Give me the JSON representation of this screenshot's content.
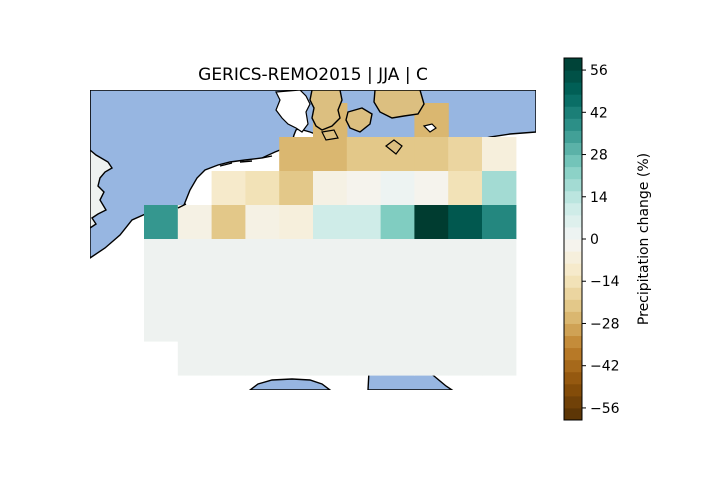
{
  "title": "GERICS-REMO2015 | JJA | C",
  "colors": {
    "ocean": "#97b6e1",
    "coastline": "#000000",
    "no_change_fill": "#eef2f0"
  },
  "colorbar": {
    "label": "Precipitation change (%)",
    "colormap": "BrBG",
    "vmin": -60,
    "vmax": 60,
    "levels": 30,
    "ticks": [
      56,
      42,
      28,
      14,
      0,
      -14,
      -28,
      -42,
      -56
    ],
    "tick_labels": [
      "56",
      "42",
      "28",
      "14",
      "0",
      "−14",
      "−28",
      "−42",
      "−56"
    ]
  },
  "grid": {
    "columns": 11,
    "rows": 9,
    "values": [
      [
        null,
        null,
        null,
        null,
        null,
        -26,
        null,
        null,
        -26,
        null,
        null
      ],
      [
        null,
        null,
        null,
        null,
        -26,
        -26,
        -22,
        -22,
        -22,
        -18,
        -6
      ],
      [
        null,
        null,
        -10,
        -14,
        -22,
        -4,
        -2,
        2,
        -2,
        -14,
        18
      ],
      [
        36,
        -4,
        -22,
        -4,
        -6,
        10,
        10,
        24,
        60,
        52,
        40
      ],
      [
        0,
        0,
        0,
        0,
        0,
        0,
        0,
        0,
        0,
        0,
        0
      ],
      [
        0,
        0,
        0,
        0,
        0,
        0,
        0,
        0,
        0,
        0,
        0
      ],
      [
        0,
        0,
        0,
        0,
        0,
        0,
        0,
        0,
        0,
        0,
        0
      ],
      [
        null,
        0,
        0,
        0,
        0,
        0,
        0,
        0,
        0,
        0,
        0
      ],
      [
        null,
        null,
        null,
        null,
        null,
        null,
        null,
        null,
        null,
        null,
        null
      ]
    ]
  }
}
